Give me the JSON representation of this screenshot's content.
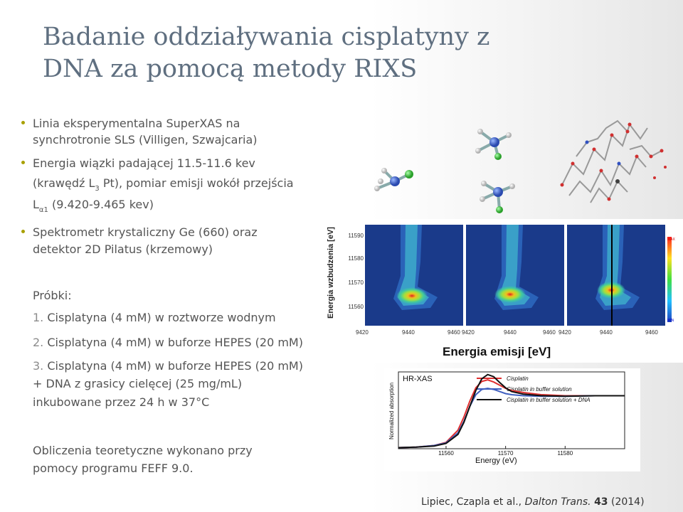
{
  "title": "Badanie oddziaływania cisplatyny z DNA za pomocą metody RIXS",
  "bullets": [
    {
      "lines": [
        "Linia eksperymentalna SuperXAS na",
        "synchrotronie SLS (Villigen, Szwajcaria)"
      ]
    },
    {
      "line1": "Energia wiązki padającej 11.5-11.6 kev",
      "line2_a": "(krawędź L",
      "line2_sub": "3",
      "line2_b": " Pt), pomiar emisji wokół przejścia",
      "line3_a": "L",
      "line3_sub": "α1",
      "line3_b": " (9.420-9.465 kev)"
    },
    {
      "lines": [
        "Spektrometr krystaliczny Ge (660) oraz",
        "detektor 2D Pilatus (krzemowy)"
      ]
    }
  ],
  "samples_label": "Próbki:",
  "samples": [
    {
      "num": "1.",
      "lines": [
        "Cisplatyna (4 mM) w roztworze wodnym"
      ]
    },
    {
      "num": "2.",
      "lines": [
        "Cisplatyna (4 mM) w buforze HEPES (20 mM)"
      ]
    },
    {
      "num": "3.",
      "lines": [
        "Cisplatyna (4 mM) w buforze HEPES (20 mM)",
        "+ DNA z grasicy cielęcej (25 mg/mL)",
        "inkubowane przez 24 h w 37°C"
      ]
    }
  ],
  "calculation_note": [
    "Obliczenia teoretyczne wykonano przy",
    "pomocy programu FEFF 9.0."
  ],
  "citation": {
    "authors": "Lipiec, Czapla et al., ",
    "journal": "Dalton Trans.",
    "space": " ",
    "volume": "43",
    "year": " (2014)"
  },
  "rixs_map": {
    "y_label": "Energia wzbudzenia [eV]",
    "x_label": "Energia emisji [eV]",
    "y_ticks": [
      "11590",
      "11580",
      "11570",
      "11560"
    ],
    "x_ticks": [
      "9420",
      "9440",
      "9460",
      "9420",
      "9440",
      "9460",
      "9420",
      "9440",
      "9460"
    ],
    "colorbar_max": "MAX",
    "colorbar_min": "MIN"
  },
  "xas_chart": {
    "title": "HR-XAS",
    "y_label": "Normalized absorption",
    "x_label": "Energy (eV)",
    "x_ticks": [
      "11560",
      "11570",
      "11580"
    ],
    "legend": [
      "Cisplatin",
      "Cisplatin in buffer solution",
      "Cisplatin in buffer solution + DNA"
    ],
    "colors": [
      "#e03030",
      "#4060c0",
      "#111111"
    ]
  },
  "chart_data": {
    "type": "line",
    "title": "HR-XAS",
    "xlabel": "Energy (eV)",
    "ylabel": "Normalized absorption",
    "xlim": [
      11552,
      11590
    ],
    "ylim": [
      0,
      1.45
    ],
    "series": [
      {
        "name": "Cisplatin",
        "color": "#e03030",
        "x": [
          11552,
          11555,
          11558,
          11560,
          11562,
          11563,
          11564,
          11565,
          11566,
          11567,
          11568,
          11569,
          11570,
          11571,
          11573,
          11576,
          11580,
          11585,
          11590
        ],
        "y": [
          0.02,
          0.03,
          0.06,
          0.12,
          0.35,
          0.6,
          0.9,
          1.15,
          1.27,
          1.3,
          1.26,
          1.2,
          1.14,
          1.1,
          1.06,
          1.02,
          1.0,
          1.0,
          1.0
        ]
      },
      {
        "name": "Cisplatin in buffer solution",
        "color": "#4060c0",
        "x": [
          11552,
          11555,
          11558,
          11560,
          11562,
          11563,
          11564,
          11565,
          11566,
          11567,
          11568,
          11569,
          11570,
          11571,
          11573,
          11576,
          11580,
          11585,
          11590
        ],
        "y": [
          0.02,
          0.03,
          0.06,
          0.11,
          0.3,
          0.52,
          0.8,
          1.02,
          1.12,
          1.14,
          1.12,
          1.08,
          1.04,
          1.02,
          1.0,
          0.99,
          0.99,
          1.0,
          1.0
        ]
      },
      {
        "name": "Cisplatin in buffer solution + DNA",
        "color": "#111111",
        "x": [
          11552,
          11555,
          11558,
          11560,
          11562,
          11563,
          11564,
          11565,
          11566,
          11567,
          11568,
          11569,
          11570,
          11571,
          11573,
          11576,
          11580,
          11585,
          11590
        ],
        "y": [
          0.02,
          0.03,
          0.05,
          0.1,
          0.27,
          0.5,
          0.8,
          1.1,
          1.32,
          1.4,
          1.36,
          1.25,
          1.15,
          1.08,
          1.03,
          1.0,
          0.99,
          1.0,
          1.0
        ]
      }
    ]
  }
}
